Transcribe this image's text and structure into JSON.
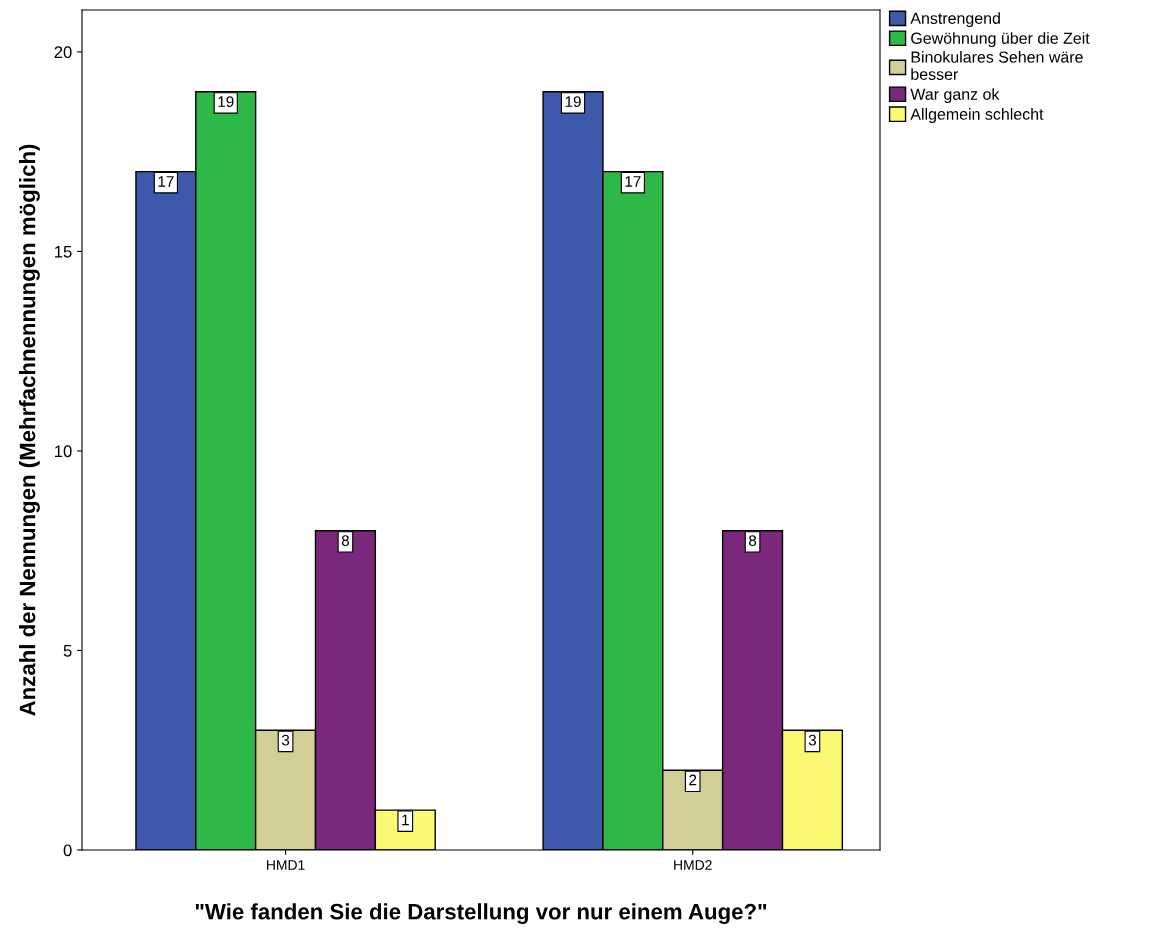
{
  "chart_data": {
    "type": "bar",
    "xlabel": "\"Wie fanden Sie die Darstellung vor nur einem Auge?\"",
    "ylabel": "Anzahl der Nennungen (Mehrfachnennungen möglich)",
    "categories": [
      "HMD1",
      "HMD2"
    ],
    "series": [
      {
        "name": "Anstrengend",
        "color": "#3e58ac",
        "values": [
          17,
          19
        ]
      },
      {
        "name": "Gewöhnung über die Zeit",
        "color": "#2eb848",
        "values": [
          19,
          17
        ]
      },
      {
        "name": "Binokulares Sehen wäre\nbesser",
        "color": "#d3ce97",
        "values": [
          3,
          2
        ]
      },
      {
        "name": "War ganz ok",
        "color": "#7a287b",
        "values": [
          8,
          8
        ]
      },
      {
        "name": "Allgemein schlecht",
        "color": "#fbf873",
        "values": [
          1,
          3
        ]
      }
    ],
    "ylim": [
      0,
      21.05
    ],
    "yticks": [
      0,
      5,
      10,
      15,
      20
    ],
    "grid": false,
    "legend": "top right",
    "data_labels": true
  }
}
